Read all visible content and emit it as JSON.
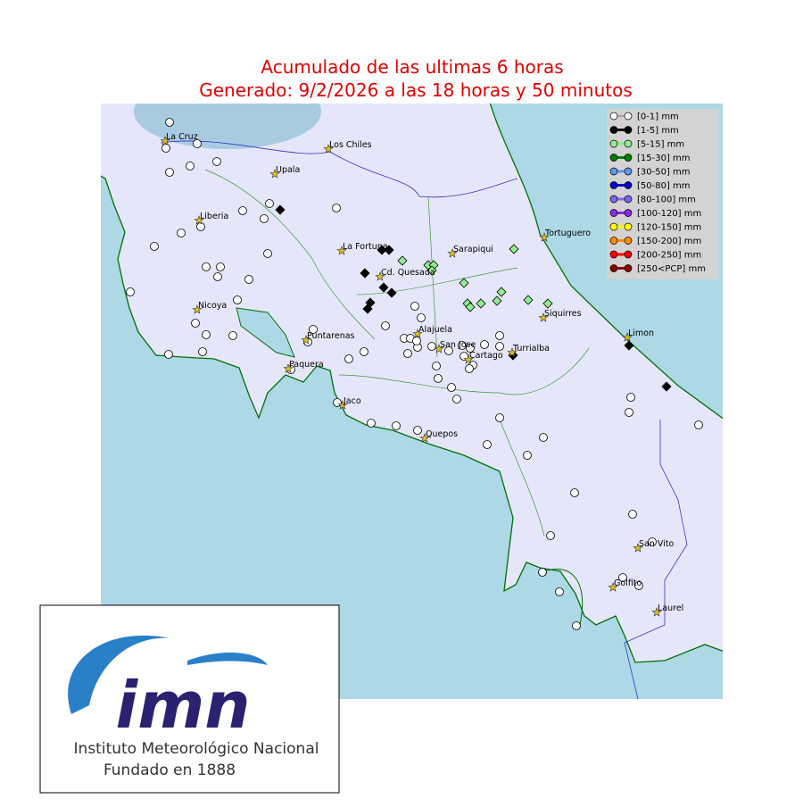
{
  "header": {
    "title_line1": "Acumulado de las ultimas 6 horas",
    "title_line2": "Generado:  9/2/2026 a las 18 horas y 50 minutos"
  },
  "legend": {
    "items": [
      {
        "label": "[0-1] mm",
        "color": "#ffffff"
      },
      {
        "label": "[1-5] mm",
        "color": "#000000"
      },
      {
        "label": "[5-15] mm",
        "color": "#90ee90"
      },
      {
        "label": "[15-30] mm",
        "color": "#008000"
      },
      {
        "label": "[30-50] mm",
        "color": "#6495ed"
      },
      {
        "label": "[50-80] mm",
        "color": "#0000cd"
      },
      {
        "label": "[80-100] mm",
        "color": "#7b68ee"
      },
      {
        "label": "[100-120] mm",
        "color": "#8a2be2"
      },
      {
        "label": "[120-150] mm",
        "color": "#ffff00"
      },
      {
        "label": "[150-200] mm",
        "color": "#ff8c00"
      },
      {
        "label": "[200-250] mm",
        "color": "#ff0000"
      },
      {
        "label": "[250<PCP] mm",
        "color": "#8b0000"
      }
    ]
  },
  "cities": [
    "La Cruz",
    "Los Chiles",
    "Upala",
    "Liberia",
    "La Fortuna",
    "Sarapiqui",
    "Tortuguero",
    "Cd. Quesada",
    "Nicoya",
    "Siquirres",
    "Limon",
    "Alajuela",
    "Puntarenas",
    "San Jose",
    "Turrialba",
    "Cartago",
    "Paquera",
    "Jaco",
    "Quepos",
    "San Vito",
    "Golfito",
    "Laurel"
  ],
  "logo": {
    "mark": "imn",
    "name": "Instituto Meteorológico Nacional",
    "founded": "Fundado en 1888"
  }
}
